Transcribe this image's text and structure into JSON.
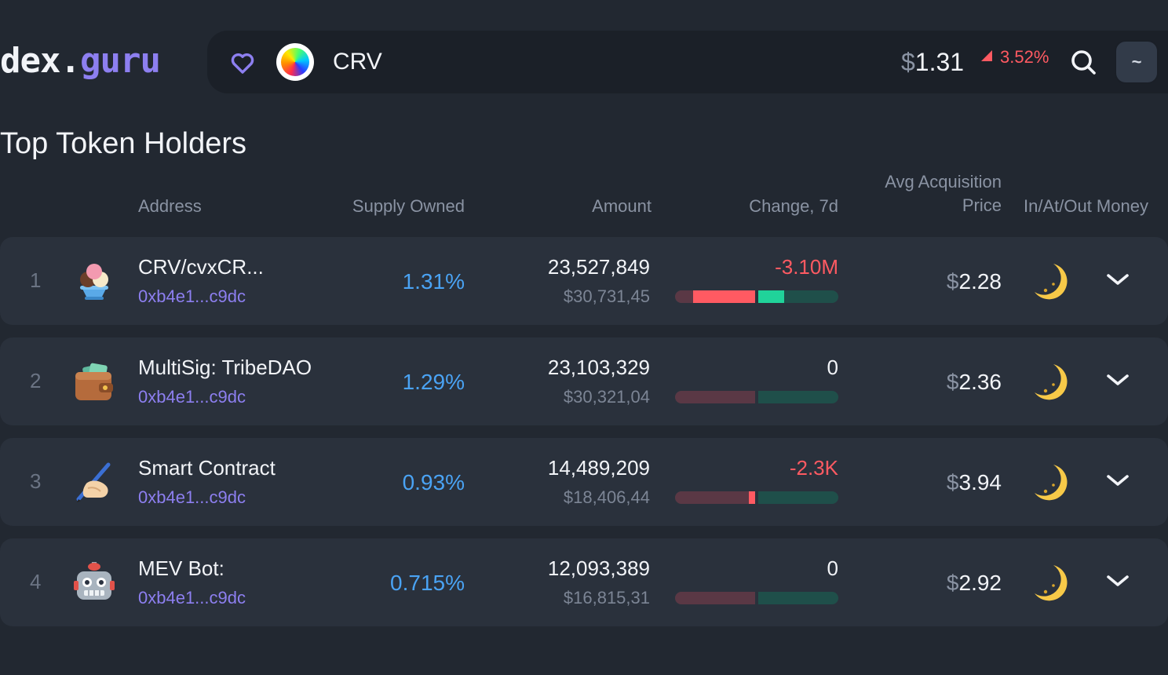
{
  "brand": {
    "part1": "dex",
    "dot": ".",
    "part2": "guru"
  },
  "token": {
    "symbol": "CRV",
    "price_currency": "$",
    "price": "1.31",
    "change": "3.52%"
  },
  "icons": {
    "favorite": "heart-icon",
    "search": "search-icon",
    "menu": "tilde-icon",
    "expand": "chevron-down-icon",
    "money_status": "moon-icon"
  },
  "colors": {
    "accent": "#8d7ff0",
    "negative": "#ff5a62",
    "positive": "#20d39a",
    "supply": "#4aa3f4"
  },
  "menu_button_label": "~",
  "section_title": "Top Token Holders",
  "columns": {
    "address": "Address",
    "supply": "Supply Owned",
    "amount": "Amount",
    "change": "Change, 7d",
    "avg_line1": "Avg Acquisition",
    "avg_line2": "Price",
    "money": "In/At/Out Money"
  },
  "holders": [
    {
      "rank": "1",
      "avatar": "ice-cream-icon",
      "name": "CRV/cvxCR...",
      "address": "0xb4e1...c9dc",
      "supply": "1.31%",
      "amount": "23,527,849",
      "amount_usd": "$30,731,45",
      "change": "-3.10M",
      "change_sign": "neg",
      "sell_share": 0.38,
      "buy_share": 0.16,
      "avg_currency": "$",
      "avg_price": "2.28"
    },
    {
      "rank": "2",
      "avatar": "wallet-icon",
      "name": "MultiSig: TribeDAO",
      "address": "0xb4e1...c9dc",
      "supply": "1.29%",
      "amount": "23,103,329",
      "amount_usd": "$30,321,04",
      "change": "0",
      "change_sign": "zero",
      "sell_share": 0,
      "buy_share": 0,
      "avg_currency": "$",
      "avg_price": "2.36"
    },
    {
      "rank": "3",
      "avatar": "writing-hand-icon",
      "name": "Smart Contract",
      "address": "0xb4e1...c9dc",
      "supply": "0.93%",
      "amount": "14,489,209",
      "amount_usd": "$18,406,44",
      "change": "-2.3K",
      "change_sign": "neg",
      "sell_share": 0.04,
      "buy_share": 0,
      "avg_currency": "$",
      "avg_price": "3.94"
    },
    {
      "rank": "4",
      "avatar": "robot-icon",
      "name": "MEV Bot:",
      "address": "0xb4e1...c9dc",
      "supply": "0.715%",
      "amount": "12,093,389",
      "amount_usd": "$16,815,31",
      "change": "0",
      "change_sign": "zero",
      "sell_share": 0,
      "buy_share": 0,
      "avg_currency": "$",
      "avg_price": "2.92"
    }
  ]
}
